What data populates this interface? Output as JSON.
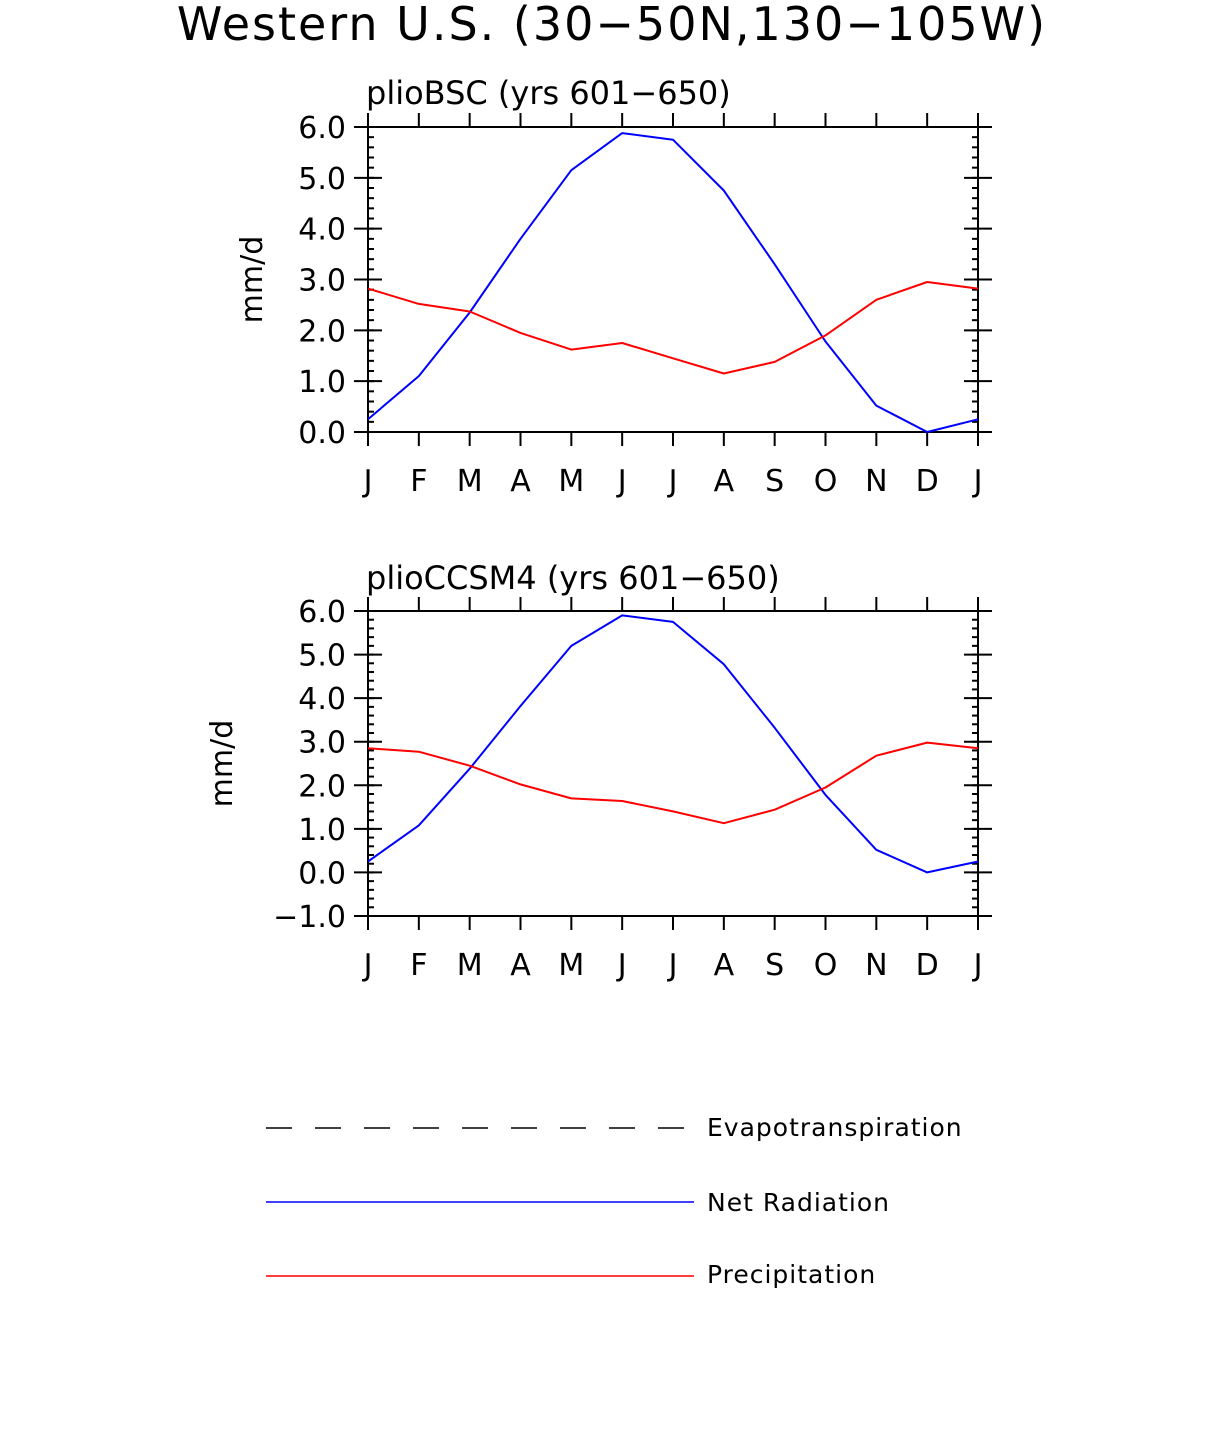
{
  "figure": {
    "title": "Western U.S. (30−50N,130−105W)"
  },
  "legend": {
    "items": [
      {
        "label": "Evapotranspiration",
        "color": "#000000",
        "style": "dashed"
      },
      {
        "label": "Net Radiation",
        "color": "#0000ff",
        "style": "solid"
      },
      {
        "label": "Precipitation",
        "color": "#ff0000",
        "style": "solid"
      }
    ]
  },
  "chart_data": [
    {
      "type": "line",
      "title": "plioBSC (yrs 601−650)",
      "xlabel": "",
      "ylabel": "mm/d",
      "categories": [
        "J",
        "F",
        "M",
        "A",
        "M",
        "J",
        "J",
        "A",
        "S",
        "O",
        "N",
        "D",
        "J"
      ],
      "ylim": [
        0.0,
        6.0
      ],
      "yticks": [
        0.0,
        1.0,
        2.0,
        3.0,
        4.0,
        5.0,
        6.0
      ],
      "ytick_labels": [
        "0.0",
        "1.0",
        "2.0",
        "3.0",
        "4.0",
        "5.0",
        "6.0"
      ],
      "series": [
        {
          "name": "Net Radiation",
          "color": "#0000ff",
          "values": [
            0.25,
            1.1,
            2.35,
            3.8,
            5.15,
            5.88,
            5.75,
            4.75,
            3.3,
            1.78,
            0.52,
            0.0,
            0.25
          ]
        },
        {
          "name": "Precipitation",
          "color": "#ff0000",
          "values": [
            2.82,
            2.52,
            2.37,
            1.95,
            1.62,
            1.75,
            1.45,
            1.15,
            1.38,
            1.9,
            2.6,
            2.95,
            2.82
          ]
        }
      ]
    },
    {
      "type": "line",
      "title": "plioCCSM4 (yrs 601−650)",
      "xlabel": "",
      "ylabel": "mm/d",
      "categories": [
        "J",
        "F",
        "M",
        "A",
        "M",
        "J",
        "J",
        "A",
        "S",
        "O",
        "N",
        "D",
        "J"
      ],
      "ylim": [
        -1.0,
        6.0
      ],
      "yticks": [
        -1.0,
        0.0,
        1.0,
        2.0,
        3.0,
        4.0,
        5.0,
        6.0
      ],
      "ytick_labels": [
        "−1.0",
        "0.0",
        "1.0",
        "2.0",
        "3.0",
        "4.0",
        "5.0",
        "6.0"
      ],
      "series": [
        {
          "name": "Net Radiation",
          "color": "#0000ff",
          "values": [
            0.25,
            1.08,
            2.38,
            3.82,
            5.2,
            5.9,
            5.75,
            4.78,
            3.32,
            1.78,
            0.52,
            0.0,
            0.25
          ]
        },
        {
          "name": "Precipitation",
          "color": "#ff0000",
          "values": [
            2.85,
            2.77,
            2.45,
            2.02,
            1.7,
            1.64,
            1.4,
            1.13,
            1.44,
            1.95,
            2.68,
            2.98,
            2.85
          ]
        }
      ]
    }
  ]
}
